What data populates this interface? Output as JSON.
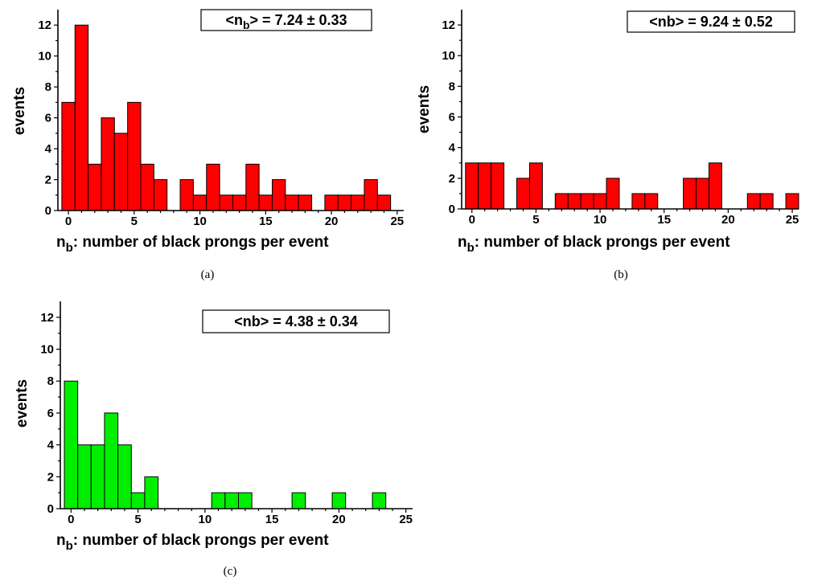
{
  "chart_data": [
    {
      "type": "bar",
      "panel": "(a)",
      "ylabel": "events",
      "xlabel_main": "n",
      "xlabel_sub": "b",
      "xlabel_rest": ": number of black prongs per event",
      "annotation_pre": "<n",
      "annotation_sub": "b",
      "annotation_post": "> = 7.24 ± 0.33",
      "bar_color": "#ff0000",
      "xlim": [
        -0.8,
        25.5
      ],
      "ylim": [
        0,
        13
      ],
      "xticks": [
        0,
        5,
        10,
        15,
        20,
        25
      ],
      "yticks": [
        0,
        2,
        4,
        6,
        8,
        10,
        12
      ],
      "x": [
        0,
        1,
        2,
        3,
        4,
        5,
        6,
        7,
        9,
        10,
        11,
        12,
        13,
        14,
        15,
        16,
        17,
        18,
        20,
        21,
        22,
        23,
        24
      ],
      "values": [
        7,
        12,
        3,
        6,
        5,
        7,
        3,
        2,
        2,
        1,
        3,
        1,
        1,
        3,
        1,
        2,
        1,
        1,
        1,
        1,
        1,
        2,
        1
      ]
    },
    {
      "type": "bar",
      "panel": "(b)",
      "ylabel": "events",
      "xlabel_main": "n",
      "xlabel_sub": "b",
      "xlabel_rest": ": number of black prongs per event",
      "annotation_pre": "<nb> = 9.24 ± 0.52",
      "annotation_sub": "",
      "annotation_post": "",
      "bar_color": "#ff0000",
      "xlim": [
        -0.8,
        25.5
      ],
      "ylim": [
        0,
        13
      ],
      "xticks": [
        0,
        5,
        10,
        15,
        20,
        25
      ],
      "yticks": [
        0,
        2,
        4,
        6,
        8,
        10,
        12
      ],
      "x": [
        0,
        1,
        2,
        4,
        5,
        7,
        8,
        9,
        10,
        11,
        13,
        14,
        17,
        18,
        19,
        22,
        23,
        25
      ],
      "values": [
        3,
        3,
        3,
        2,
        3,
        1,
        1,
        1,
        1,
        2,
        1,
        1,
        2,
        2,
        3,
        1,
        1,
        1
      ]
    },
    {
      "type": "bar",
      "panel": "(c)",
      "ylabel": "events",
      "xlabel_main": "n",
      "xlabel_sub": "b",
      "xlabel_rest": ": number of black prongs per event",
      "annotation_pre": "<nb> = 4.38 ± 0.34",
      "annotation_sub": "",
      "annotation_post": "",
      "bar_color": "#00ee00",
      "xlim": [
        -0.8,
        25.5
      ],
      "ylim": [
        0,
        13
      ],
      "xticks": [
        0,
        5,
        10,
        15,
        20,
        25
      ],
      "yticks": [
        0,
        2,
        4,
        6,
        8,
        10,
        12
      ],
      "x": [
        0,
        1,
        2,
        3,
        4,
        5,
        6,
        11,
        12,
        13,
        17,
        20,
        23
      ],
      "values": [
        8,
        4,
        4,
        6,
        4,
        1,
        2,
        1,
        1,
        1,
        1,
        1,
        1
      ]
    }
  ]
}
